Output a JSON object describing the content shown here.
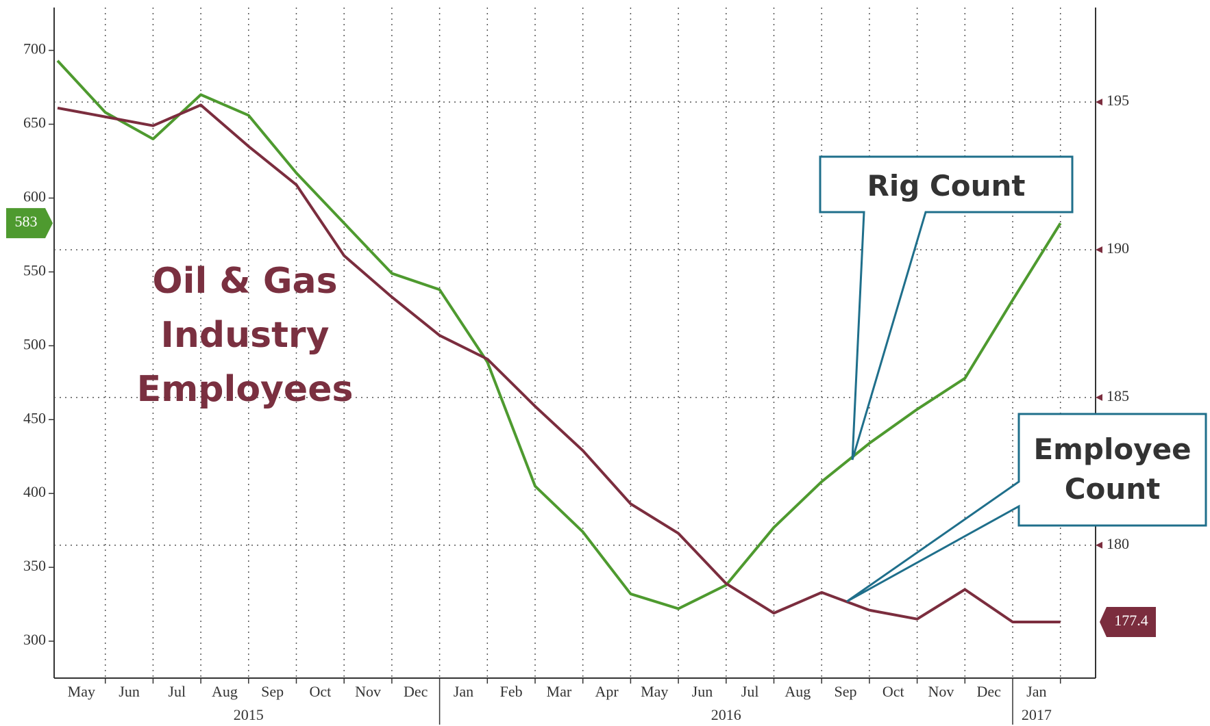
{
  "chart_data": {
    "type": "line",
    "annotation": "Oil & Gas Industry Employees",
    "x": [
      "2015-04",
      "2015-05",
      "2015-06",
      "2015-07",
      "2015-08",
      "2015-09",
      "2015-10",
      "2015-11",
      "2015-12",
      "2016-01",
      "2016-02",
      "2016-03",
      "2016-04",
      "2016-05",
      "2016-06",
      "2016-07",
      "2016-08",
      "2016-09",
      "2016-10",
      "2016-11",
      "2016-12",
      "2017-01"
    ],
    "xticks": [
      {
        "value": "2015-05",
        "label": "May"
      },
      {
        "value": "2015-06",
        "label": "Jun"
      },
      {
        "value": "2015-07",
        "label": "Jul"
      },
      {
        "value": "2015-08",
        "label": "Aug"
      },
      {
        "value": "2015-09",
        "label": "Sep"
      },
      {
        "value": "2015-10",
        "label": "Oct"
      },
      {
        "value": "2015-11",
        "label": "Nov"
      },
      {
        "value": "2015-12",
        "label": "Dec"
      },
      {
        "value": "2016-01",
        "label": "Jan"
      },
      {
        "value": "2016-02",
        "label": "Feb"
      },
      {
        "value": "2016-03",
        "label": "Mar"
      },
      {
        "value": "2016-04",
        "label": "Apr"
      },
      {
        "value": "2016-05",
        "label": "May"
      },
      {
        "value": "2016-06",
        "label": "Jun"
      },
      {
        "value": "2016-07",
        "label": "Jul"
      },
      {
        "value": "2016-08",
        "label": "Aug"
      },
      {
        "value": "2016-09",
        "label": "Sep"
      },
      {
        "value": "2016-10",
        "label": "Oct"
      },
      {
        "value": "2016-11",
        "label": "Nov"
      },
      {
        "value": "2016-12",
        "label": "Dec"
      },
      {
        "value": "2017-01",
        "label": "Jan"
      }
    ],
    "years": [
      "2015",
      "2016",
      "2017"
    ],
    "ylim": [
      275,
      729
    ],
    "yticks": [
      300,
      350,
      400,
      450,
      500,
      550,
      600,
      650,
      700
    ],
    "y2lim": [
      175.5,
      198.2
    ],
    "y2ticks": [
      180,
      185,
      190,
      195
    ],
    "grid": true,
    "series": [
      {
        "name": "Rig Count",
        "color": "#4e9a2f",
        "axis": "y",
        "values": [
          693,
          658,
          640,
          670,
          656,
          617,
          583,
          549,
          538,
          489,
          405,
          374,
          332,
          322,
          338,
          377,
          408,
          434,
          457,
          478,
          531,
          583
        ]
      },
      {
        "name": "Employee Count",
        "color": "#7b2d3e",
        "axis": "y2",
        "values": [
          194.8,
          194.5,
          194.2,
          194.9,
          193.5,
          192.2,
          189.8,
          188.4,
          187.1,
          186.3,
          184.7,
          183.2,
          181.4,
          180.4,
          178.7,
          177.7,
          178.4,
          177.8,
          177.5,
          178.5,
          177.4,
          177.4
        ]
      }
    ]
  }
}
